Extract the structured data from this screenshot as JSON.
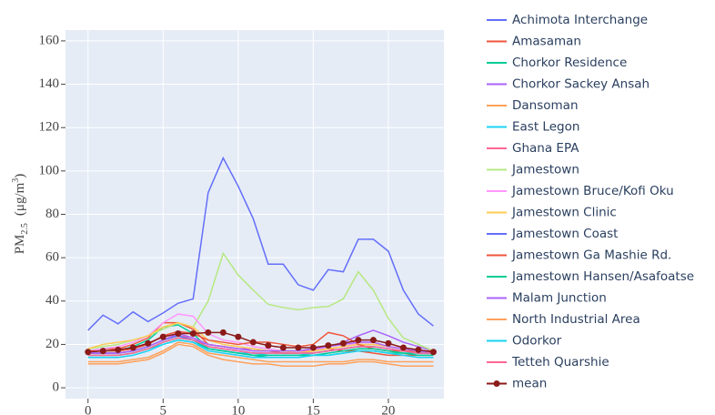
{
  "chart_data": {
    "type": "line",
    "y_label": {
      "main": "PM",
      "sub": "2.5",
      "unit": "(μg/m",
      "sup": "3",
      "close": ")"
    },
    "x": [
      0,
      1,
      2,
      3,
      4,
      5,
      6,
      7,
      8,
      9,
      10,
      11,
      12,
      13,
      14,
      15,
      16,
      17,
      18,
      19,
      20,
      21,
      22,
      23
    ],
    "xlim": [
      -1.5,
      23.7
    ],
    "xticks": [
      0,
      5,
      10,
      15,
      20
    ],
    "ylim": [
      -5,
      165
    ],
    "yticks": [
      0,
      20,
      40,
      60,
      80,
      100,
      120,
      140,
      160
    ],
    "grid": true,
    "legend": "right",
    "series": [
      {
        "name": "Achimota Interchange",
        "color": "#636efa",
        "values": [
          26.5,
          33.5,
          29.5,
          35,
          30.5,
          34.5,
          39,
          41,
          90,
          106,
          93,
          78,
          57,
          57,
          47.5,
          45,
          54.5,
          53.5,
          68.5,
          68.5,
          63,
          45,
          34,
          28.5
        ]
      },
      {
        "name": "Amasaman",
        "color": "#EF553B",
        "values": [
          17,
          18,
          18,
          20,
          23,
          30,
          30,
          27,
          20,
          19,
          18,
          18,
          17,
          16,
          16,
          17,
          18,
          17,
          17,
          16,
          15,
          15,
          15,
          15
        ]
      },
      {
        "name": "Chorkor Residence",
        "color": "#00cc96",
        "values": [
          17,
          17,
          17,
          19,
          22,
          28,
          29,
          25,
          18,
          17,
          16,
          15,
          14,
          14,
          14,
          15,
          15,
          16,
          17,
          17,
          16,
          16,
          16,
          16
        ]
      },
      {
        "name": "Chorkor Sackey Ansah",
        "color": "#ab63fa",
        "values": [
          16,
          16,
          16,
          17,
          19,
          22,
          24,
          22,
          20,
          19,
          18,
          18,
          17,
          17,
          17,
          18,
          19,
          21,
          24,
          26.5,
          24,
          21,
          19,
          17
        ]
      },
      {
        "name": "Dansoman",
        "color": "#FFA15A",
        "values": [
          12,
          12,
          12,
          13,
          14,
          17,
          21,
          20,
          16,
          15,
          14,
          13,
          12,
          12,
          12,
          12,
          12,
          12,
          13,
          13,
          12,
          12,
          12,
          12
        ]
      },
      {
        "name": "East Legon",
        "color": "#19d3f3",
        "values": [
          15,
          15,
          15,
          16,
          18,
          20,
          22,
          21,
          18,
          17,
          16,
          16,
          15,
          15,
          15,
          16,
          17,
          18,
          19,
          19,
          18,
          17,
          16,
          16
        ]
      },
      {
        "name": "Ghana EPA",
        "color": "#FF6692",
        "values": [
          16,
          16,
          16,
          17,
          19,
          22,
          24,
          23,
          20,
          19,
          18,
          17,
          17,
          17,
          17,
          17,
          18,
          19,
          20,
          20,
          19,
          18,
          17,
          17
        ]
      },
      {
        "name": "Jamestown",
        "color": "#B6E880",
        "values": [
          18,
          19,
          20,
          22,
          24,
          27,
          30,
          28,
          40,
          62,
          52,
          45,
          38.5,
          37,
          36,
          37,
          37.5,
          41,
          53.5,
          45,
          32,
          23,
          20,
          17
        ]
      },
      {
        "name": "Jamestown Bruce/Kofi Oku",
        "color": "#FF97FF",
        "values": [
          17,
          18,
          19,
          21,
          24,
          30,
          34,
          33,
          25,
          22,
          21,
          19,
          18,
          17,
          17,
          18,
          18,
          19,
          21,
          21,
          19,
          18,
          17,
          17
        ]
      },
      {
        "name": "Jamestown Clinic",
        "color": "#FECB52",
        "values": [
          18,
          20,
          21,
          22,
          24,
          28,
          30,
          28,
          22,
          20,
          19,
          18,
          17,
          17,
          16,
          17,
          18,
          19,
          20,
          20,
          19,
          18,
          17,
          17
        ]
      },
      {
        "name": "Jamestown Coast",
        "color": "#636efa",
        "values": [
          16,
          16,
          16,
          17,
          19,
          22,
          24,
          22,
          19,
          18,
          17,
          16,
          16,
          16,
          16,
          16,
          17,
          18,
          19,
          19,
          18,
          17,
          16,
          16
        ]
      },
      {
        "name": "Jamestown Ga Mashie Rd.",
        "color": "#EF553B",
        "values": [
          17,
          17,
          17,
          18,
          20,
          24,
          26,
          25,
          22,
          21,
          20,
          21,
          21,
          20,
          19,
          20,
          25.5,
          24,
          20,
          18,
          17,
          17,
          17,
          17
        ]
      },
      {
        "name": "Jamestown Hansen/Asafoatse",
        "color": "#00cc96",
        "values": [
          15,
          15,
          15,
          16,
          18,
          21,
          23,
          22,
          18,
          17,
          16,
          15,
          15,
          15,
          15,
          15,
          16,
          17,
          18,
          18,
          17,
          16,
          15,
          15
        ]
      },
      {
        "name": "Malam Junction",
        "color": "#ab63fa",
        "values": [
          16,
          16,
          16,
          17,
          19,
          22,
          25,
          23,
          20,
          19,
          18,
          17,
          17,
          17,
          17,
          18,
          19,
          20,
          21,
          21,
          19,
          18,
          17,
          16
        ]
      },
      {
        "name": "North Industrial Area",
        "color": "#FFA15A",
        "values": [
          11,
          11,
          11,
          12,
          13,
          16,
          20,
          19,
          15,
          13,
          12,
          11,
          11,
          10,
          10,
          10,
          11,
          11,
          12,
          12,
          11,
          10,
          10,
          10
        ]
      },
      {
        "name": "Odorkor",
        "color": "#19d3f3",
        "values": [
          14,
          14,
          14,
          15,
          17,
          20,
          22,
          21,
          17,
          16,
          15,
          14,
          14,
          14,
          14,
          15,
          15,
          16,
          17,
          17,
          16,
          15,
          14,
          14
        ]
      },
      {
        "name": "Tetteh Quarshie",
        "color": "#FF6692",
        "values": [
          15,
          15,
          15,
          16,
          18,
          21,
          23,
          22,
          19,
          18,
          17,
          16,
          16,
          16,
          16,
          16,
          17,
          18,
          19,
          19,
          18,
          17,
          16,
          16
        ]
      },
      {
        "name": "mean",
        "color": "#8b1a1a",
        "markers": true,
        "values": [
          16.5,
          17,
          17.5,
          18.5,
          20.5,
          23.5,
          25,
          25,
          25.5,
          25.5,
          23.5,
          21,
          19.5,
          18.5,
          18.5,
          18.5,
          19.5,
          20.5,
          22,
          22,
          20.5,
          18.5,
          17.5,
          16.5
        ]
      }
    ]
  }
}
